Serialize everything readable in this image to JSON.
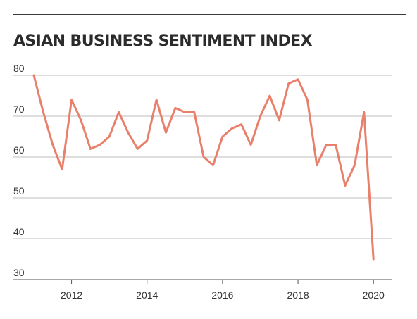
{
  "chart_data": {
    "type": "line",
    "title": "ASIAN BUSINESS SENTIMENT INDEX",
    "xlabel": "",
    "ylabel": "",
    "ylim": [
      30,
      80
    ],
    "xlim": [
      2011.0,
      2020.5
    ],
    "yticks": [
      80,
      70,
      60,
      50,
      40,
      30
    ],
    "xticks": [
      "2012",
      "2014",
      "2016",
      "2018",
      "2020"
    ],
    "grid": "horizontal",
    "line_color": "#e8806b",
    "series": [
      {
        "x": [
          "2011-Q1",
          "2011-Q2",
          "2011-Q3",
          "2011-Q4",
          "2012-Q1",
          "2012-Q2",
          "2012-Q3",
          "2012-Q4",
          "2013-Q1",
          "2013-Q2",
          "2013-Q3",
          "2013-Q4",
          "2014-Q1",
          "2014-Q2",
          "2014-Q3",
          "2014-Q4",
          "2015-Q1",
          "2015-Q2",
          "2015-Q3",
          "2015-Q4",
          "2016-Q1",
          "2016-Q2",
          "2016-Q3",
          "2016-Q4",
          "2017-Q1",
          "2017-Q2",
          "2017-Q3",
          "2017-Q4",
          "2018-Q1",
          "2018-Q2",
          "2018-Q3",
          "2018-Q4",
          "2019-Q1",
          "2019-Q2",
          "2019-Q3",
          "2019-Q4",
          "2020-Q1"
        ],
        "values": [
          80,
          71,
          63,
          57,
          74,
          69,
          62,
          63,
          65,
          71,
          66,
          62,
          64,
          74,
          66,
          72,
          71,
          71,
          60,
          58,
          65,
          67,
          68,
          63,
          70,
          75,
          69,
          78,
          79,
          74,
          58,
          63,
          63,
          53,
          58,
          71,
          35
        ]
      }
    ]
  }
}
